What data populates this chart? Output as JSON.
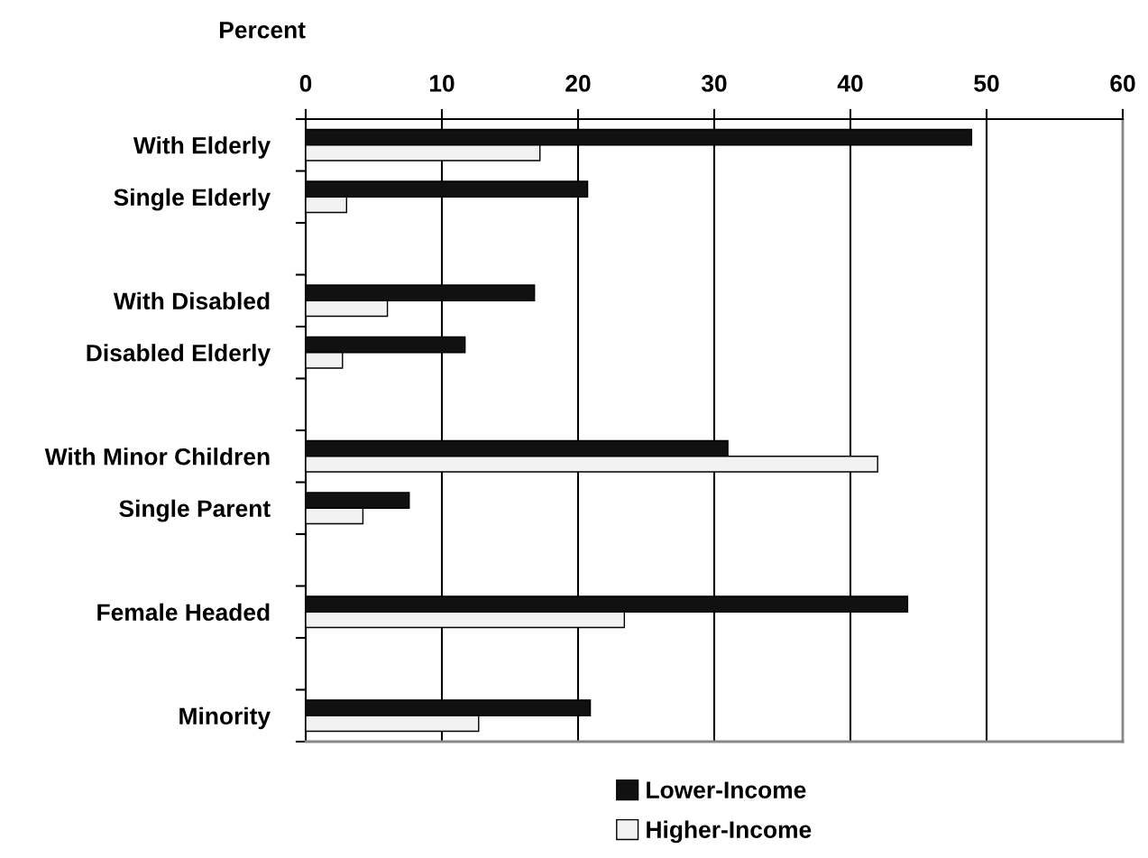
{
  "chart_data": {
    "type": "bar",
    "orientation": "horizontal",
    "xlabel": "Percent",
    "categories": [
      "With Elderly",
      "Single Elderly",
      null,
      "With Disabled",
      "Disabled Elderly",
      null,
      "With Minor Children",
      "Single Parent",
      null,
      "Female Headed",
      null,
      "Minority"
    ],
    "series": [
      {
        "name": "Lower-Income",
        "color": "#111111",
        "values": [
          48.9,
          20.7,
          null,
          16.8,
          11.7,
          null,
          31.0,
          7.6,
          null,
          44.2,
          null,
          20.9
        ]
      },
      {
        "name": "Higher-Income",
        "color": "#f2f2f2",
        "values": [
          17.2,
          3.0,
          null,
          6.0,
          2.7,
          null,
          42.0,
          4.2,
          null,
          23.4,
          null,
          12.7
        ]
      }
    ],
    "xlim": [
      0,
      60
    ],
    "xticks": [
      0,
      10,
      20,
      30,
      40,
      50,
      60
    ],
    "grid": "x",
    "legend": "bottom"
  }
}
